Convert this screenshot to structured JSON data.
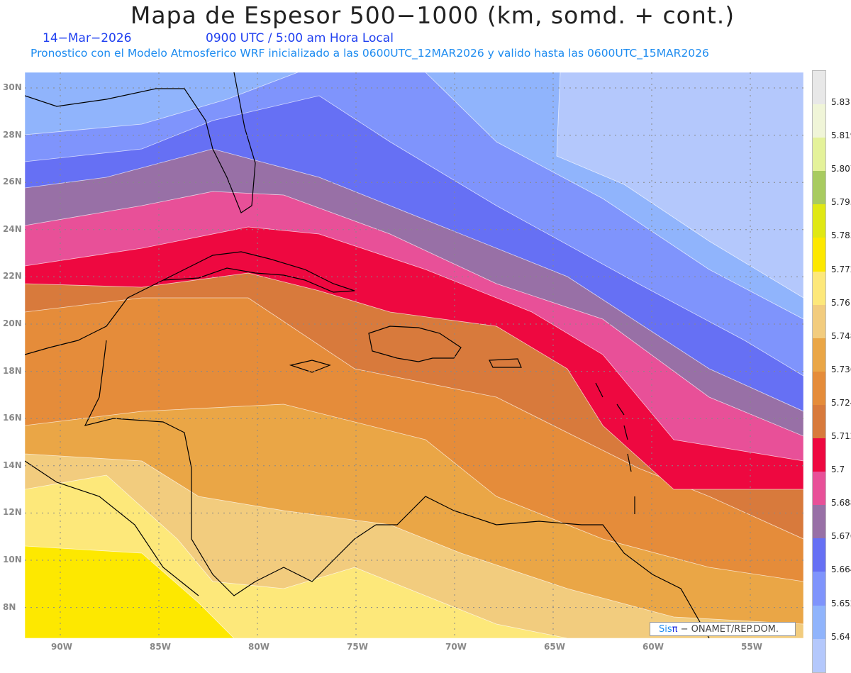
{
  "header": {
    "title": "Mapa de Espesor 500−1000 (km, somd. + cont.)",
    "date": "14−Mar−2026",
    "time": "0900 UTC / 5:00 am Hora Local",
    "subtitle": "Pronostico con el Modelo Atmosferico WRF inicializado a las 0600UTC_12MAR2026 y valido hasta las  0600UTC_15MAR2026"
  },
  "axes": {
    "lat_labels": [
      "30N",
      "28N",
      "26N",
      "24N",
      "22N",
      "20N",
      "18N",
      "16N",
      "14N",
      "12N",
      "10N",
      "8N"
    ],
    "lon_labels": [
      "90W",
      "85W",
      "80W",
      "75W",
      "70W",
      "65W",
      "60W",
      "55W"
    ]
  },
  "colorbar": {
    "colors": [
      "#e8e8e8",
      "#f0f5d8",
      "#e4f29a",
      "#a8cb60",
      "#e0e814",
      "#fde800",
      "#fde87a",
      "#f2cc7e",
      "#eaa646",
      "#e58c3a",
      "#d87a3c",
      "#ee0840",
      "#e85098",
      "#9870a6",
      "#6670f4",
      "#7f94fc",
      "#90b4fc",
      "#b4c8fc"
    ],
    "labels": [
      "5.831",
      "5.819",
      "5.807",
      "5.795",
      "5.783",
      "5.772",
      "5.76",
      "5.748",
      "5.736",
      "5.724",
      "5.712",
      "5.7",
      "5.688",
      "5.676",
      "5.664",
      "5.652",
      "5.64"
    ]
  },
  "credit": {
    "brand_a": "Sis",
    "brand_b": "π",
    "text": "− ONAMET/REP.DOM."
  }
}
